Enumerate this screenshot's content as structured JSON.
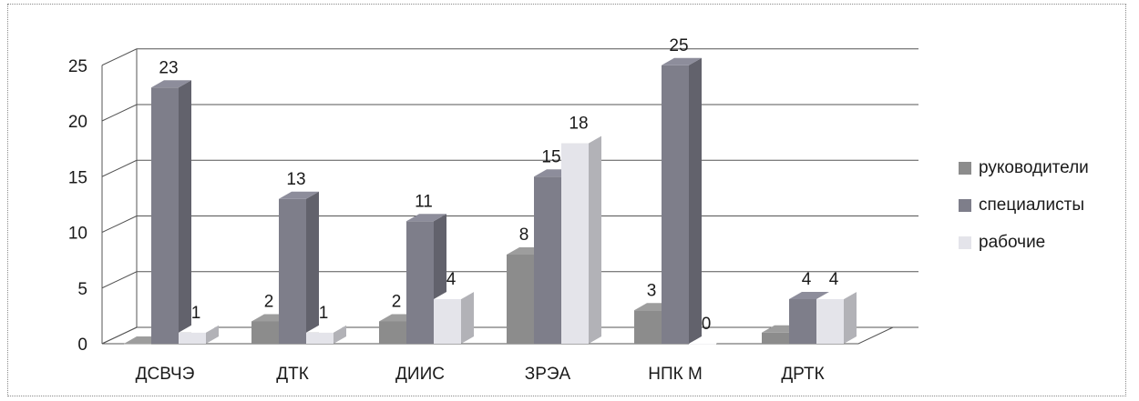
{
  "chart_data": {
    "type": "bar",
    "categories": [
      "ДСВЧЭ",
      "ДТК",
      "ДИИС",
      "ЗРЭА",
      "НПК М",
      "ДРТК"
    ],
    "series": [
      {
        "name": "руководители",
        "values": [
          0,
          2,
          2,
          8,
          3,
          1
        ],
        "labels": [
          "",
          "2",
          "2",
          "8",
          "3",
          ""
        ],
        "color": "#8c8c8c"
      },
      {
        "name": "специалисты",
        "values": [
          23,
          13,
          11,
          15,
          25,
          4
        ],
        "labels": [
          "23",
          "13",
          "11",
          "15",
          "25",
          "4"
        ],
        "color": "#7e7e8a"
      },
      {
        "name": "рабочие",
        "values": [
          1,
          1,
          4,
          18,
          0,
          4
        ],
        "labels": [
          "1",
          "1",
          "4",
          "18",
          "0",
          "4"
        ],
        "color": "#e4e4ea"
      }
    ],
    "yticks": [
      "0",
      "5",
      "10",
      "15",
      "20",
      "25"
    ],
    "ylim": [
      0,
      25
    ],
    "grid": true,
    "legend_position": "right",
    "title": "",
    "xlabel": "",
    "ylabel": ""
  }
}
